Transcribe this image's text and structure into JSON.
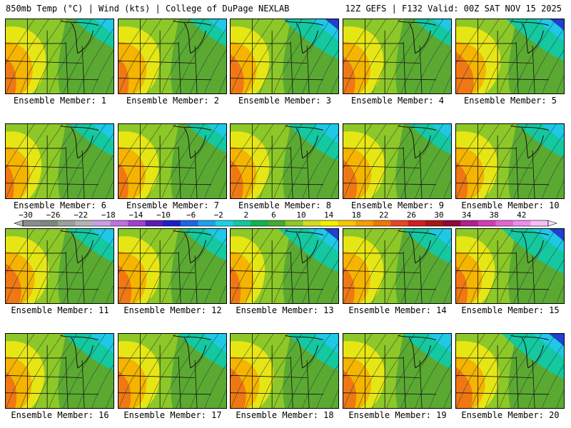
{
  "header": {
    "left": "850mb Temp (°C) | Wind (kts) | College of DuPage NEXLAB",
    "right": "12Z GEFS | F132 Valid: 00Z SAT NOV 15 2025"
  },
  "colorbar": {
    "labels": [
      "−30",
      "−26",
      "−22",
      "−18",
      "−14",
      "−10",
      "−6",
      "−2",
      "2",
      "6",
      "10",
      "14",
      "18",
      "22",
      "26",
      "30",
      "34",
      "38",
      "42"
    ],
    "colors": [
      "#8c8c8c",
      "#7a8a7a",
      "#9aa09a",
      "#b4b4b4",
      "#c8a0e0",
      "#c070e0",
      "#a040d0",
      "#5a1ab4",
      "#1a20c8",
      "#1e64e6",
      "#1ea0f0",
      "#1ed2e6",
      "#14c89a",
      "#10b450",
      "#46aa32",
      "#8cc828",
      "#d2dc1e",
      "#f0f000",
      "#f5c800",
      "#f5a000",
      "#f07800",
      "#e64628",
      "#d21e1e",
      "#aa1414",
      "#8c0a3c",
      "#b41e8c",
      "#d23cb4",
      "#e664d2",
      "#f08cf0",
      "#f5c0f5"
    ]
  },
  "panels": [
    {
      "label": "Ensemble Member: 1",
      "warm": 0.55,
      "cold": 0.35,
      "hot": 0.2
    },
    {
      "label": "Ensemble Member: 2",
      "warm": 0.6,
      "cold": 0.3,
      "hot": 0.15
    },
    {
      "label": "Ensemble Member: 3",
      "warm": 0.5,
      "cold": 0.7,
      "hot": 0.45
    },
    {
      "label": "Ensemble Member: 4",
      "warm": 0.55,
      "cold": 0.3,
      "hot": 0.3
    },
    {
      "label": "Ensemble Member: 5",
      "warm": 0.7,
      "cold": 0.75,
      "hot": 0.6
    },
    {
      "label": "Ensemble Member: 6",
      "warm": 0.4,
      "cold": 0.45,
      "hot": 0.1
    },
    {
      "label": "Ensemble Member: 7",
      "warm": 0.55,
      "cold": 0.35,
      "hot": 0.15
    },
    {
      "label": "Ensemble Member: 8",
      "warm": 0.5,
      "cold": 0.6,
      "hot": 0.4
    },
    {
      "label": "Ensemble Member: 9",
      "warm": 0.6,
      "cold": 0.4,
      "hot": 0.4
    },
    {
      "label": "Ensemble Member: 10",
      "warm": 0.6,
      "cold": 0.5,
      "hot": 0.25
    },
    {
      "label": "Ensemble Member: 11",
      "warm": 0.65,
      "cold": 0.5,
      "hot": 0.5
    },
    {
      "label": "Ensemble Member: 12",
      "warm": 0.6,
      "cold": 0.45,
      "hot": 0.35
    },
    {
      "label": "Ensemble Member: 13",
      "warm": 0.35,
      "cold": 0.8,
      "hot": 0.3
    },
    {
      "label": "Ensemble Member: 14",
      "warm": 0.55,
      "cold": 0.55,
      "hot": 0.25
    },
    {
      "label": "Ensemble Member: 15",
      "warm": 0.5,
      "cold": 0.85,
      "hot": 0.3
    },
    {
      "label": "Ensemble Member: 16",
      "warm": 0.5,
      "cold": 0.6,
      "hot": 0.25
    },
    {
      "label": "Ensemble Member: 17",
      "warm": 0.6,
      "cold": 0.55,
      "hot": 0.3
    },
    {
      "label": "Ensemble Member: 18",
      "warm": 0.65,
      "cold": 0.6,
      "hot": 0.5
    },
    {
      "label": "Ensemble Member: 19",
      "warm": 0.6,
      "cold": 0.55,
      "hot": 0.35
    },
    {
      "label": "Ensemble Member: 20",
      "warm": 0.65,
      "cold": 0.85,
      "hot": 0.55
    }
  ]
}
